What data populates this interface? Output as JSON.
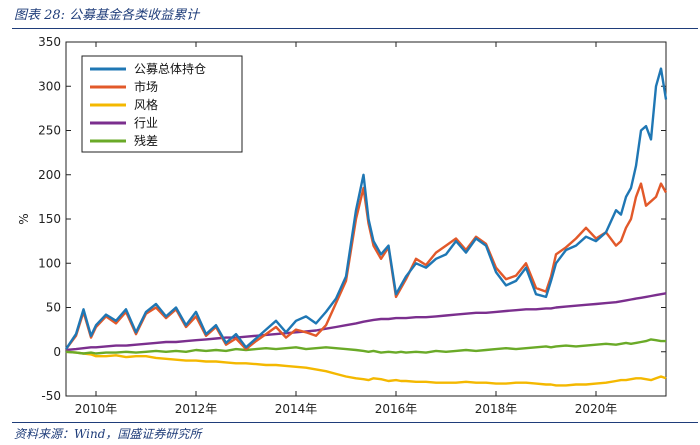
{
  "figure": {
    "title": "图表 28:  公募基金各类收益累计",
    "source": "资料来源：Wind，国盛证券研究所"
  },
  "chart_data": {
    "type": "line",
    "title": "",
    "xlabel": "",
    "ylabel": "%",
    "ylim": [
      -50,
      350
    ],
    "yticks": [
      -50,
      0,
      50,
      100,
      150,
      200,
      250,
      300,
      350
    ],
    "xlim": [
      2009.4,
      2021.4
    ],
    "xticks": [
      2010,
      2012,
      2014,
      2016,
      2018,
      2020
    ],
    "xtick_labels": [
      "2010年",
      "2012年",
      "2014年",
      "2016年",
      "2018年",
      "2020年"
    ],
    "grid": false,
    "legend_position": "top-left",
    "x": [
      2009.4,
      2009.6,
      2009.75,
      2009.9,
      2010.0,
      2010.2,
      2010.4,
      2010.6,
      2010.8,
      2011.0,
      2011.2,
      2011.4,
      2011.6,
      2011.8,
      2012.0,
      2012.2,
      2012.4,
      2012.6,
      2012.8,
      2013.0,
      2013.2,
      2013.4,
      2013.6,
      2013.8,
      2014.0,
      2014.2,
      2014.4,
      2014.6,
      2014.8,
      2015.0,
      2015.2,
      2015.35,
      2015.45,
      2015.55,
      2015.7,
      2015.85,
      2016.0,
      2016.1,
      2016.2,
      2016.4,
      2016.6,
      2016.8,
      2017.0,
      2017.2,
      2017.4,
      2017.6,
      2017.8,
      2018.0,
      2018.2,
      2018.4,
      2018.6,
      2018.8,
      2019.0,
      2019.1,
      2019.2,
      2019.4,
      2019.6,
      2019.8,
      2020.0,
      2020.2,
      2020.4,
      2020.5,
      2020.6,
      2020.7,
      2020.8,
      2020.9,
      2021.0,
      2021.1,
      2021.2,
      2021.3,
      2021.4
    ],
    "series": [
      {
        "name": "公募总体持仓",
        "color": "#1f77b4",
        "values": [
          3,
          20,
          48,
          18,
          30,
          42,
          35,
          48,
          22,
          45,
          54,
          40,
          50,
          30,
          45,
          20,
          30,
          10,
          20,
          5,
          15,
          25,
          35,
          22,
          35,
          40,
          32,
          45,
          60,
          85,
          160,
          200,
          150,
          125,
          110,
          120,
          65,
          75,
          85,
          100,
          95,
          105,
          110,
          125,
          112,
          128,
          120,
          90,
          75,
          80,
          95,
          65,
          62,
          80,
          100,
          115,
          120,
          130,
          125,
          135,
          160,
          155,
          175,
          185,
          210,
          250,
          255,
          240,
          300,
          320,
          285
        ]
      },
      {
        "name": "市场",
        "color": "#e2592a",
        "values": [
          3,
          18,
          45,
          16,
          28,
          40,
          32,
          45,
          20,
          43,
          50,
          38,
          48,
          28,
          40,
          18,
          28,
          8,
          15,
          3,
          12,
          20,
          28,
          16,
          25,
          22,
          18,
          30,
          55,
          80,
          150,
          185,
          145,
          120,
          105,
          118,
          62,
          72,
          82,
          105,
          98,
          112,
          120,
          128,
          115,
          130,
          122,
          95,
          82,
          86,
          100,
          72,
          68,
          85,
          110,
          118,
          128,
          140,
          128,
          135,
          120,
          125,
          140,
          150,
          175,
          190,
          165,
          170,
          175,
          190,
          180
        ]
      },
      {
        "name": "风格",
        "color": "#f4b800",
        "values": [
          0,
          -1,
          -2,
          -3,
          -5,
          -5,
          -4,
          -6,
          -5,
          -5,
          -7,
          -8,
          -9,
          -10,
          -10,
          -11,
          -11,
          -12,
          -13,
          -13,
          -14,
          -15,
          -15,
          -16,
          -17,
          -18,
          -20,
          -22,
          -25,
          -28,
          -30,
          -31,
          -32,
          -30,
          -31,
          -33,
          -32,
          -33,
          -33,
          -34,
          -34,
          -35,
          -35,
          -35,
          -34,
          -35,
          -35,
          -36,
          -36,
          -35,
          -35,
          -36,
          -37,
          -37,
          -38,
          -38,
          -37,
          -37,
          -36,
          -35,
          -33,
          -32,
          -32,
          -31,
          -30,
          -30,
          -31,
          -32,
          -30,
          -28,
          -30
        ]
      },
      {
        "name": "行业",
        "color": "#7b2f8e",
        "values": [
          2,
          3,
          4,
          5,
          5,
          6,
          7,
          7,
          8,
          9,
          10,
          11,
          11,
          12,
          13,
          14,
          15,
          16,
          16,
          17,
          18,
          19,
          20,
          21,
          22,
          23,
          24,
          26,
          28,
          30,
          32,
          34,
          35,
          36,
          37,
          37,
          38,
          38,
          38,
          39,
          39,
          40,
          41,
          42,
          43,
          44,
          44,
          45,
          46,
          47,
          48,
          48,
          49,
          49,
          50,
          51,
          52,
          53,
          54,
          55,
          56,
          57,
          58,
          59,
          60,
          61,
          62,
          63,
          64,
          65,
          66
        ]
      },
      {
        "name": "残差",
        "color": "#6aaa28",
        "values": [
          0,
          -1,
          -2,
          -1,
          -2,
          -1,
          -1,
          0,
          -1,
          0,
          1,
          0,
          1,
          0,
          2,
          1,
          2,
          1,
          3,
          2,
          3,
          4,
          3,
          4,
          5,
          3,
          4,
          5,
          4,
          3,
          2,
          1,
          0,
          1,
          -1,
          0,
          -1,
          0,
          -1,
          0,
          -1,
          1,
          0,
          1,
          2,
          1,
          2,
          3,
          4,
          3,
          4,
          5,
          6,
          5,
          6,
          7,
          6,
          7,
          8,
          9,
          8,
          9,
          10,
          9,
          10,
          11,
          12,
          14,
          13,
          12,
          12
        ]
      }
    ]
  }
}
